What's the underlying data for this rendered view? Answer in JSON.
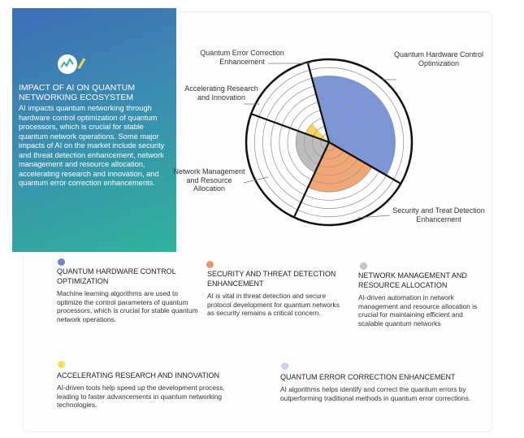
{
  "card": {
    "title": "IMPACT OF AI ON QUANTUM NETWORKING ECOSYSTEM",
    "text": "AI impacts quantum networking through hardware control optimization of quantum processors, which is crucial for stable quantum network operations. Some major impacts of AI on the market include security and threat detection enhancement, network management and resource allocation, accelerating research and innovation, and quantum error correction enhancements."
  },
  "chart_data": {
    "type": "polar",
    "categories": [
      "Quantum Error Correction Enhancement",
      "Quantum Hardware Control Optimization",
      "Security and Treat Detection Enhancement",
      "Network Management and Resource Allocation",
      "Accelerating Research and Innovation"
    ],
    "series": [
      {
        "colors": [
          "#ffffff",
          "#7b96d8",
          "#f2a674",
          "#bdbdbd",
          "#f5d55a"
        ],
        "values": [
          0,
          8,
          6,
          4,
          3
        ]
      }
    ],
    "rlim": [
      0,
      10
    ],
    "rticks": [
      1,
      2,
      3,
      4,
      5,
      6,
      7,
      8,
      9,
      10
    ]
  },
  "details": [
    {
      "title": "QUANTUM HARDWARE CONTROL OPTIMIZATION",
      "text": "Machine learning algorithms are used to optimize the control parameters of quantum processors, which is crucial for stable quantum network operations.",
      "color": "#6f87c8"
    },
    {
      "title": "SECURITY AND THREAT DETECTION ENHANCEMENT",
      "text": "AI is vital in threat detection and secure protocol development for quantum networks as security remains a critical concern.",
      "color": "#e8956a"
    },
    {
      "title": "NETWORK MANAGEMENT AND RESOURCE ALLOCATION",
      "text": "AI-driven automation in network management and resource allocation is crucial for maintaining efficient and scalable quantum networks",
      "color": "#c4c4c4"
    },
    {
      "title": "ACCELERATING RESEARCH AND INNOVATION",
      "text": "AI-driven tools help speed up the development process, leading to faster advancements in quantum networking technologies.",
      "color": "#f5dd5a"
    },
    {
      "title": "QUANTUM ERROR CORRECTION ENHANCEMENT",
      "text": "AI algorithms helps identify and correct the quantum errors by outperforming traditional methods in quantum error corrections.",
      "color": "#c5d5ee"
    }
  ]
}
